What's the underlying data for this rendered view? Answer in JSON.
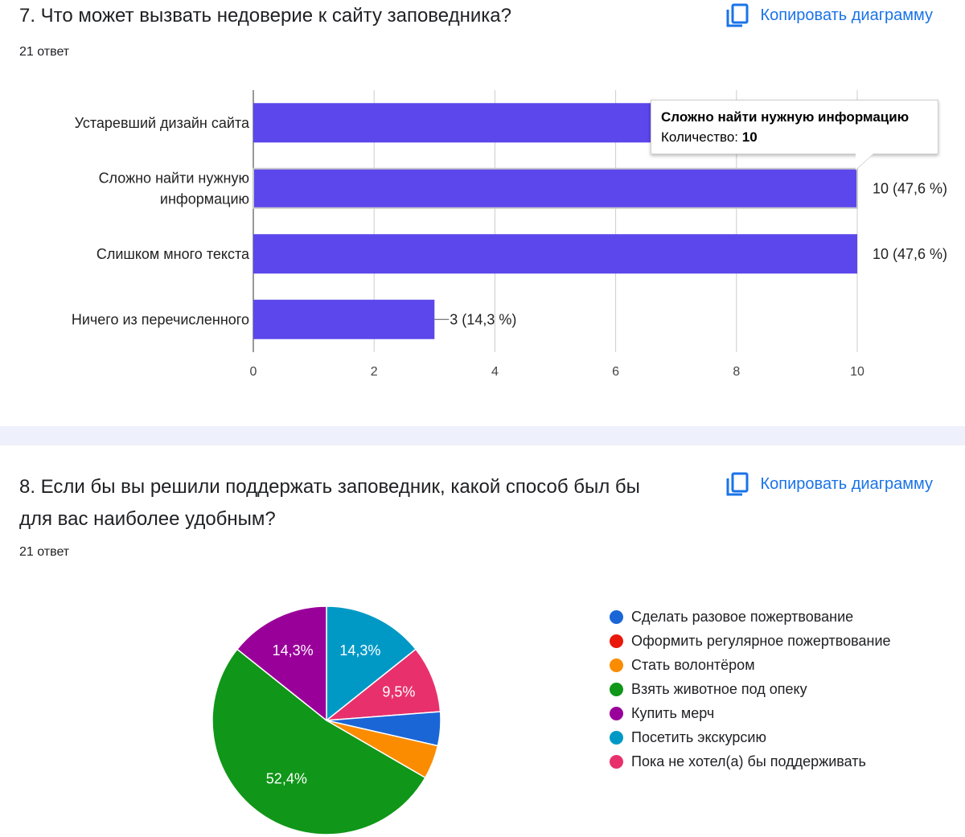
{
  "q7": {
    "title": "7. Что может вызвать недоверие к сайту заповедника?",
    "responses": "21 ответ",
    "copy_label": "Копировать диаграмму",
    "tooltip": {
      "title": "Сложно найти нужную информацию",
      "label": "Количество:",
      "value": "10"
    }
  },
  "q8": {
    "title": "8. Если бы вы решили поддержать заповедник, какой способ был бы для вас наиболее удобным?",
    "responses": "21 ответ",
    "copy_label": "Копировать диаграмму"
  },
  "colors": {
    "bar": "#5b47ec",
    "link": "#1a73e8"
  },
  "chart_data": [
    {
      "type": "bar",
      "orientation": "horizontal",
      "categories": [
        "Устаревший дизайн сайта",
        "Сложно найти нужную информацию",
        "Слишком много текста",
        "Ничего из перечисленного"
      ],
      "values": [
        7,
        10,
        10,
        3
      ],
      "data_labels": [
        "",
        "10 (47,6 %)",
        "10 (47,6 %)",
        "3 (14,3 %)"
      ],
      "xlim": [
        0,
        10
      ],
      "ticks": [
        "0",
        "2",
        "4",
        "6",
        "8",
        "10"
      ],
      "grid": true
    },
    {
      "type": "pie",
      "legend_position": "right",
      "series": [
        {
          "name": "Сделать разовое пожертвование",
          "value": 4.8,
          "label": "",
          "color": "#1a66d6"
        },
        {
          "name": "Оформить регулярное пожертвование",
          "value": 0,
          "label": "",
          "color": "#e8190a"
        },
        {
          "name": "Стать волонтёром",
          "value": 4.8,
          "label": "",
          "color": "#fb8c00"
        },
        {
          "name": "Взять животное под опеку",
          "value": 52.4,
          "label": "52,4%",
          "color": "#109618"
        },
        {
          "name": "Купить мерч",
          "value": 14.3,
          "label": "14,3%",
          "color": "#990099"
        },
        {
          "name": "Посетить экскурсию",
          "value": 14.3,
          "label": "14,3%",
          "color": "#0099c6"
        },
        {
          "name": "Пока не хотел(а) бы поддерживать",
          "value": 9.5,
          "label": "9,5%",
          "color": "#e8306c"
        }
      ]
    }
  ]
}
